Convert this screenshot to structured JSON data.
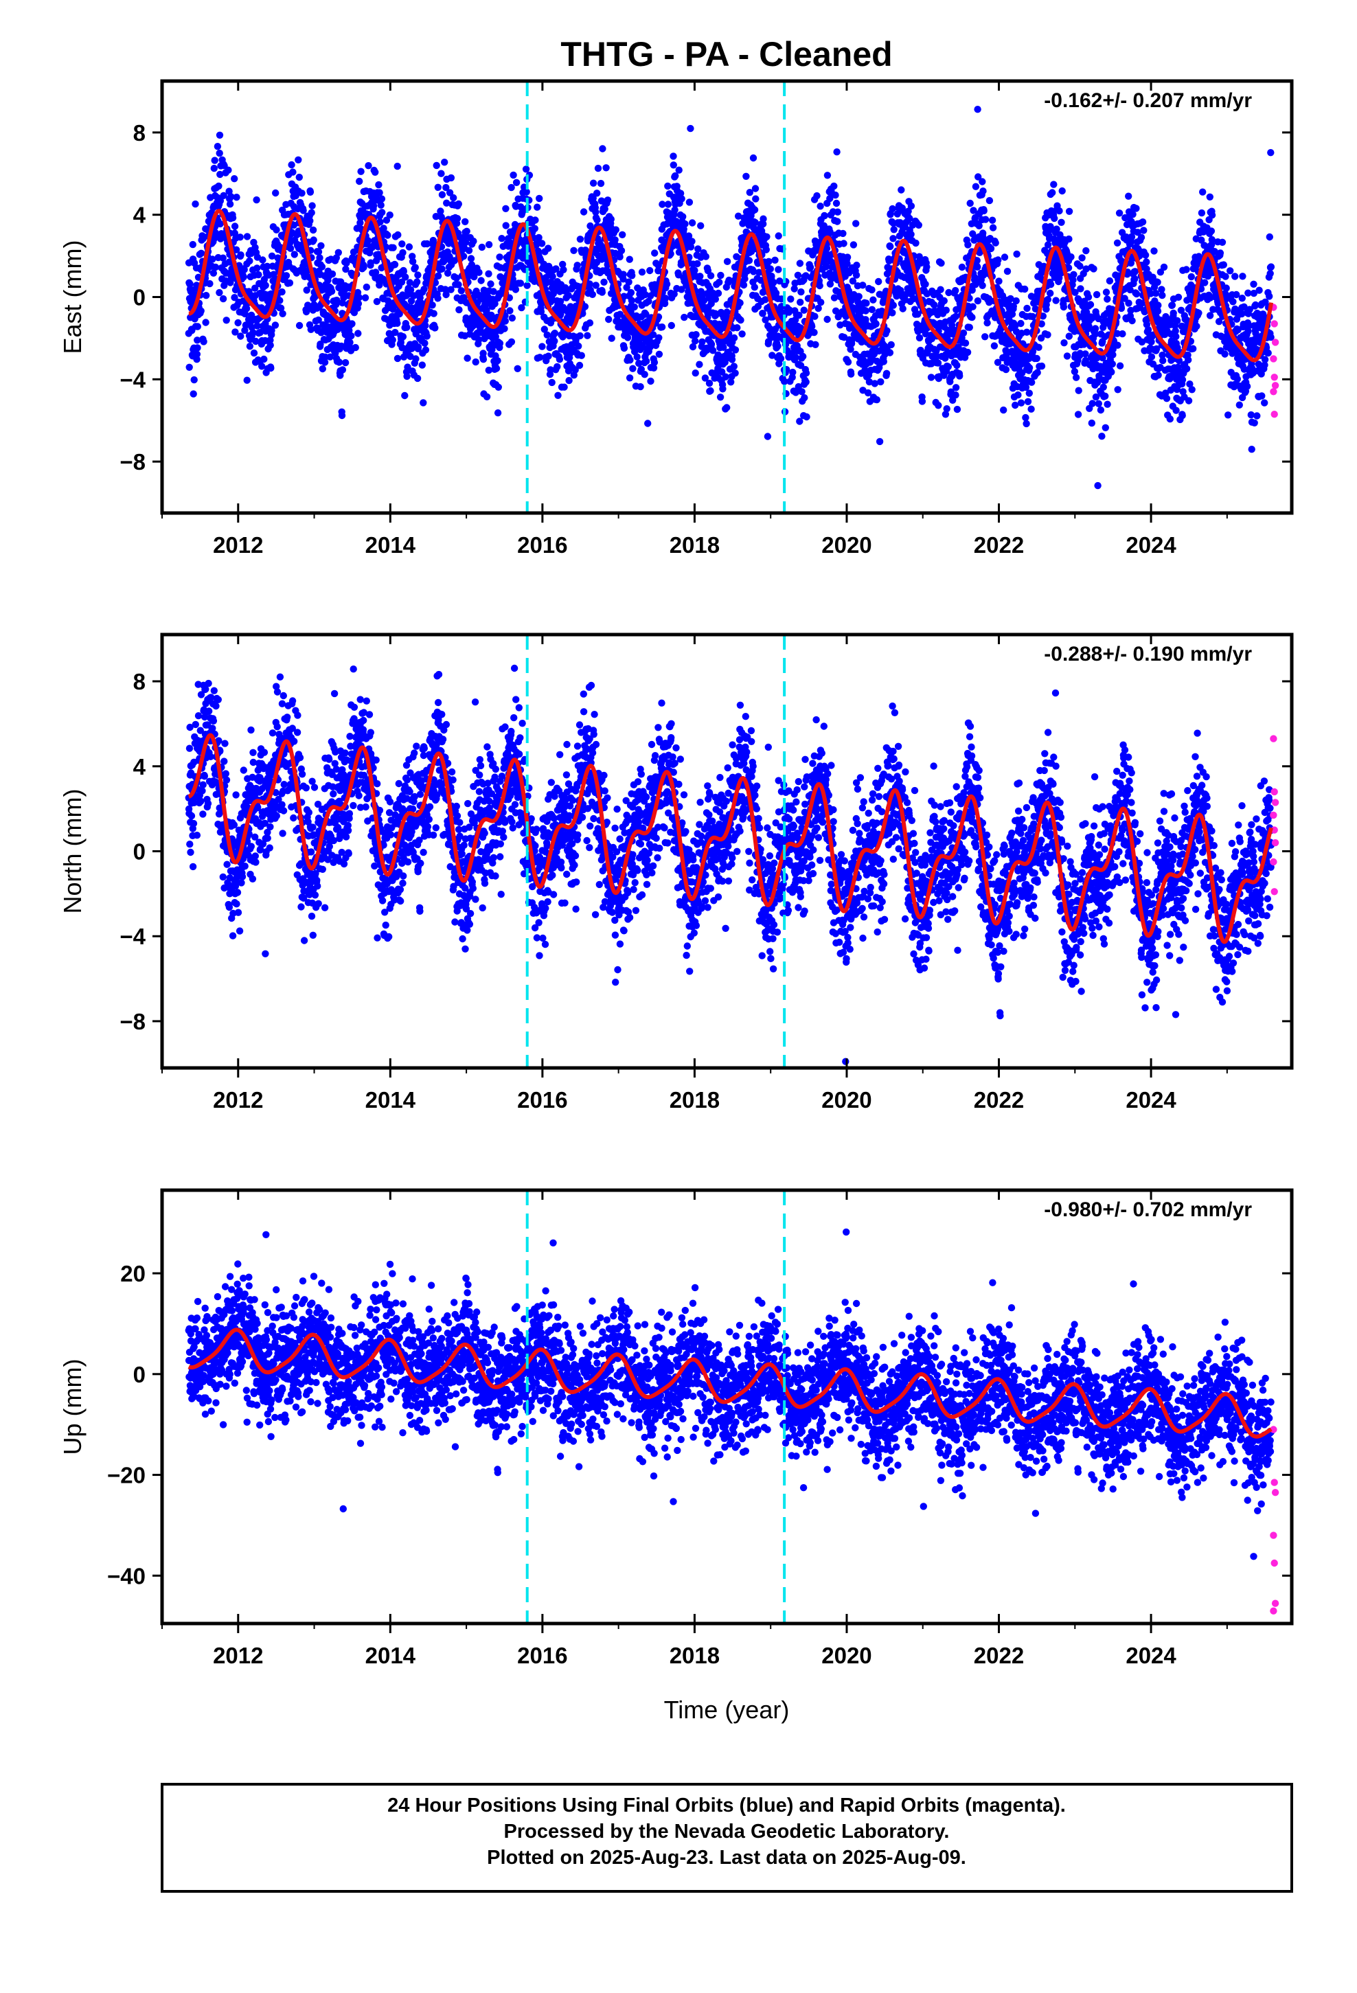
{
  "chart_data": {
    "type": "scatter",
    "title": "THTG  - PA - Cleaned",
    "xlabel": "Time (year)",
    "xlim": [
      2011.0,
      2025.85
    ],
    "x_ticks": [
      2012,
      2014,
      2016,
      2018,
      2020,
      2022,
      2024
    ],
    "event_lines_year": [
      2015.8,
      2019.18
    ],
    "panels": [
      {
        "ylabel": "East (mm)",
        "ylim": [
          -10.5,
          10.5
        ],
        "y_ticks": [
          -8,
          -4,
          0,
          4,
          8
        ],
        "rate": "-0.162+/- 0.207 mm/yr",
        "model": {
          "start": 2011.35,
          "end": 2025.58,
          "offset": 1.3,
          "trend": -0.162,
          "annual_amp": 2.4,
          "annual_phase": 2011.52,
          "semi_amp": 0.6,
          "semi_phase": 2011.6,
          "noise": 1.5
        },
        "rapid_values": [
          -0.5,
          -1.3,
          -2.2,
          -3.0,
          -3.9,
          -4.3,
          -4.6,
          -5.7
        ]
      },
      {
        "ylabel": "North (mm)",
        "ylim": [
          -10.2,
          10.2
        ],
        "y_ticks": [
          -8,
          -4,
          0,
          4,
          8
        ],
        "rate": "-0.288+/- 0.190 mm/yr",
        "model": {
          "start": 2011.35,
          "end": 2025.58,
          "offset": 2.6,
          "trend": -0.288,
          "annual_amp": 2.2,
          "annual_phase": 2011.3,
          "semi_amp": 1.2,
          "semi_phase": 2011.55,
          "noise": 1.5
        },
        "rapid_values": [
          5.3,
          2.8,
          2.3,
          1.7,
          1.0,
          0.4,
          -0.5,
          -1.9
        ]
      },
      {
        "ylabel": "Up (mm)",
        "ylim": [
          -49.5,
          36.5
        ],
        "y_ticks": [
          -40,
          -20,
          0,
          20
        ],
        "rate": "-0.980+/- 0.702 mm/yr",
        "model": {
          "start": 2011.35,
          "end": 2025.58,
          "offset": 5.0,
          "trend": -0.98,
          "annual_amp": 3.8,
          "annual_phase": 2011.7,
          "semi_amp": 0.8,
          "semi_phase": 2011.9,
          "noise": 5.5
        },
        "rapid_values": [
          -11.0,
          -21.5,
          -23.5,
          -32.0,
          -37.5,
          -45.5,
          -47.0
        ]
      }
    ],
    "colors": {
      "final": "#0000ff",
      "rapid": "#ff22dd",
      "model": "#ee1111",
      "event": "#00e5ee"
    }
  },
  "footer": {
    "line1": "24 Hour Positions Using Final Orbits (blue) and Rapid Orbits (magenta).",
    "line2": "Processed by the Nevada Geodetic Laboratory.",
    "line3": "Plotted on 2025-Aug-23. Last data on 2025-Aug-09."
  }
}
